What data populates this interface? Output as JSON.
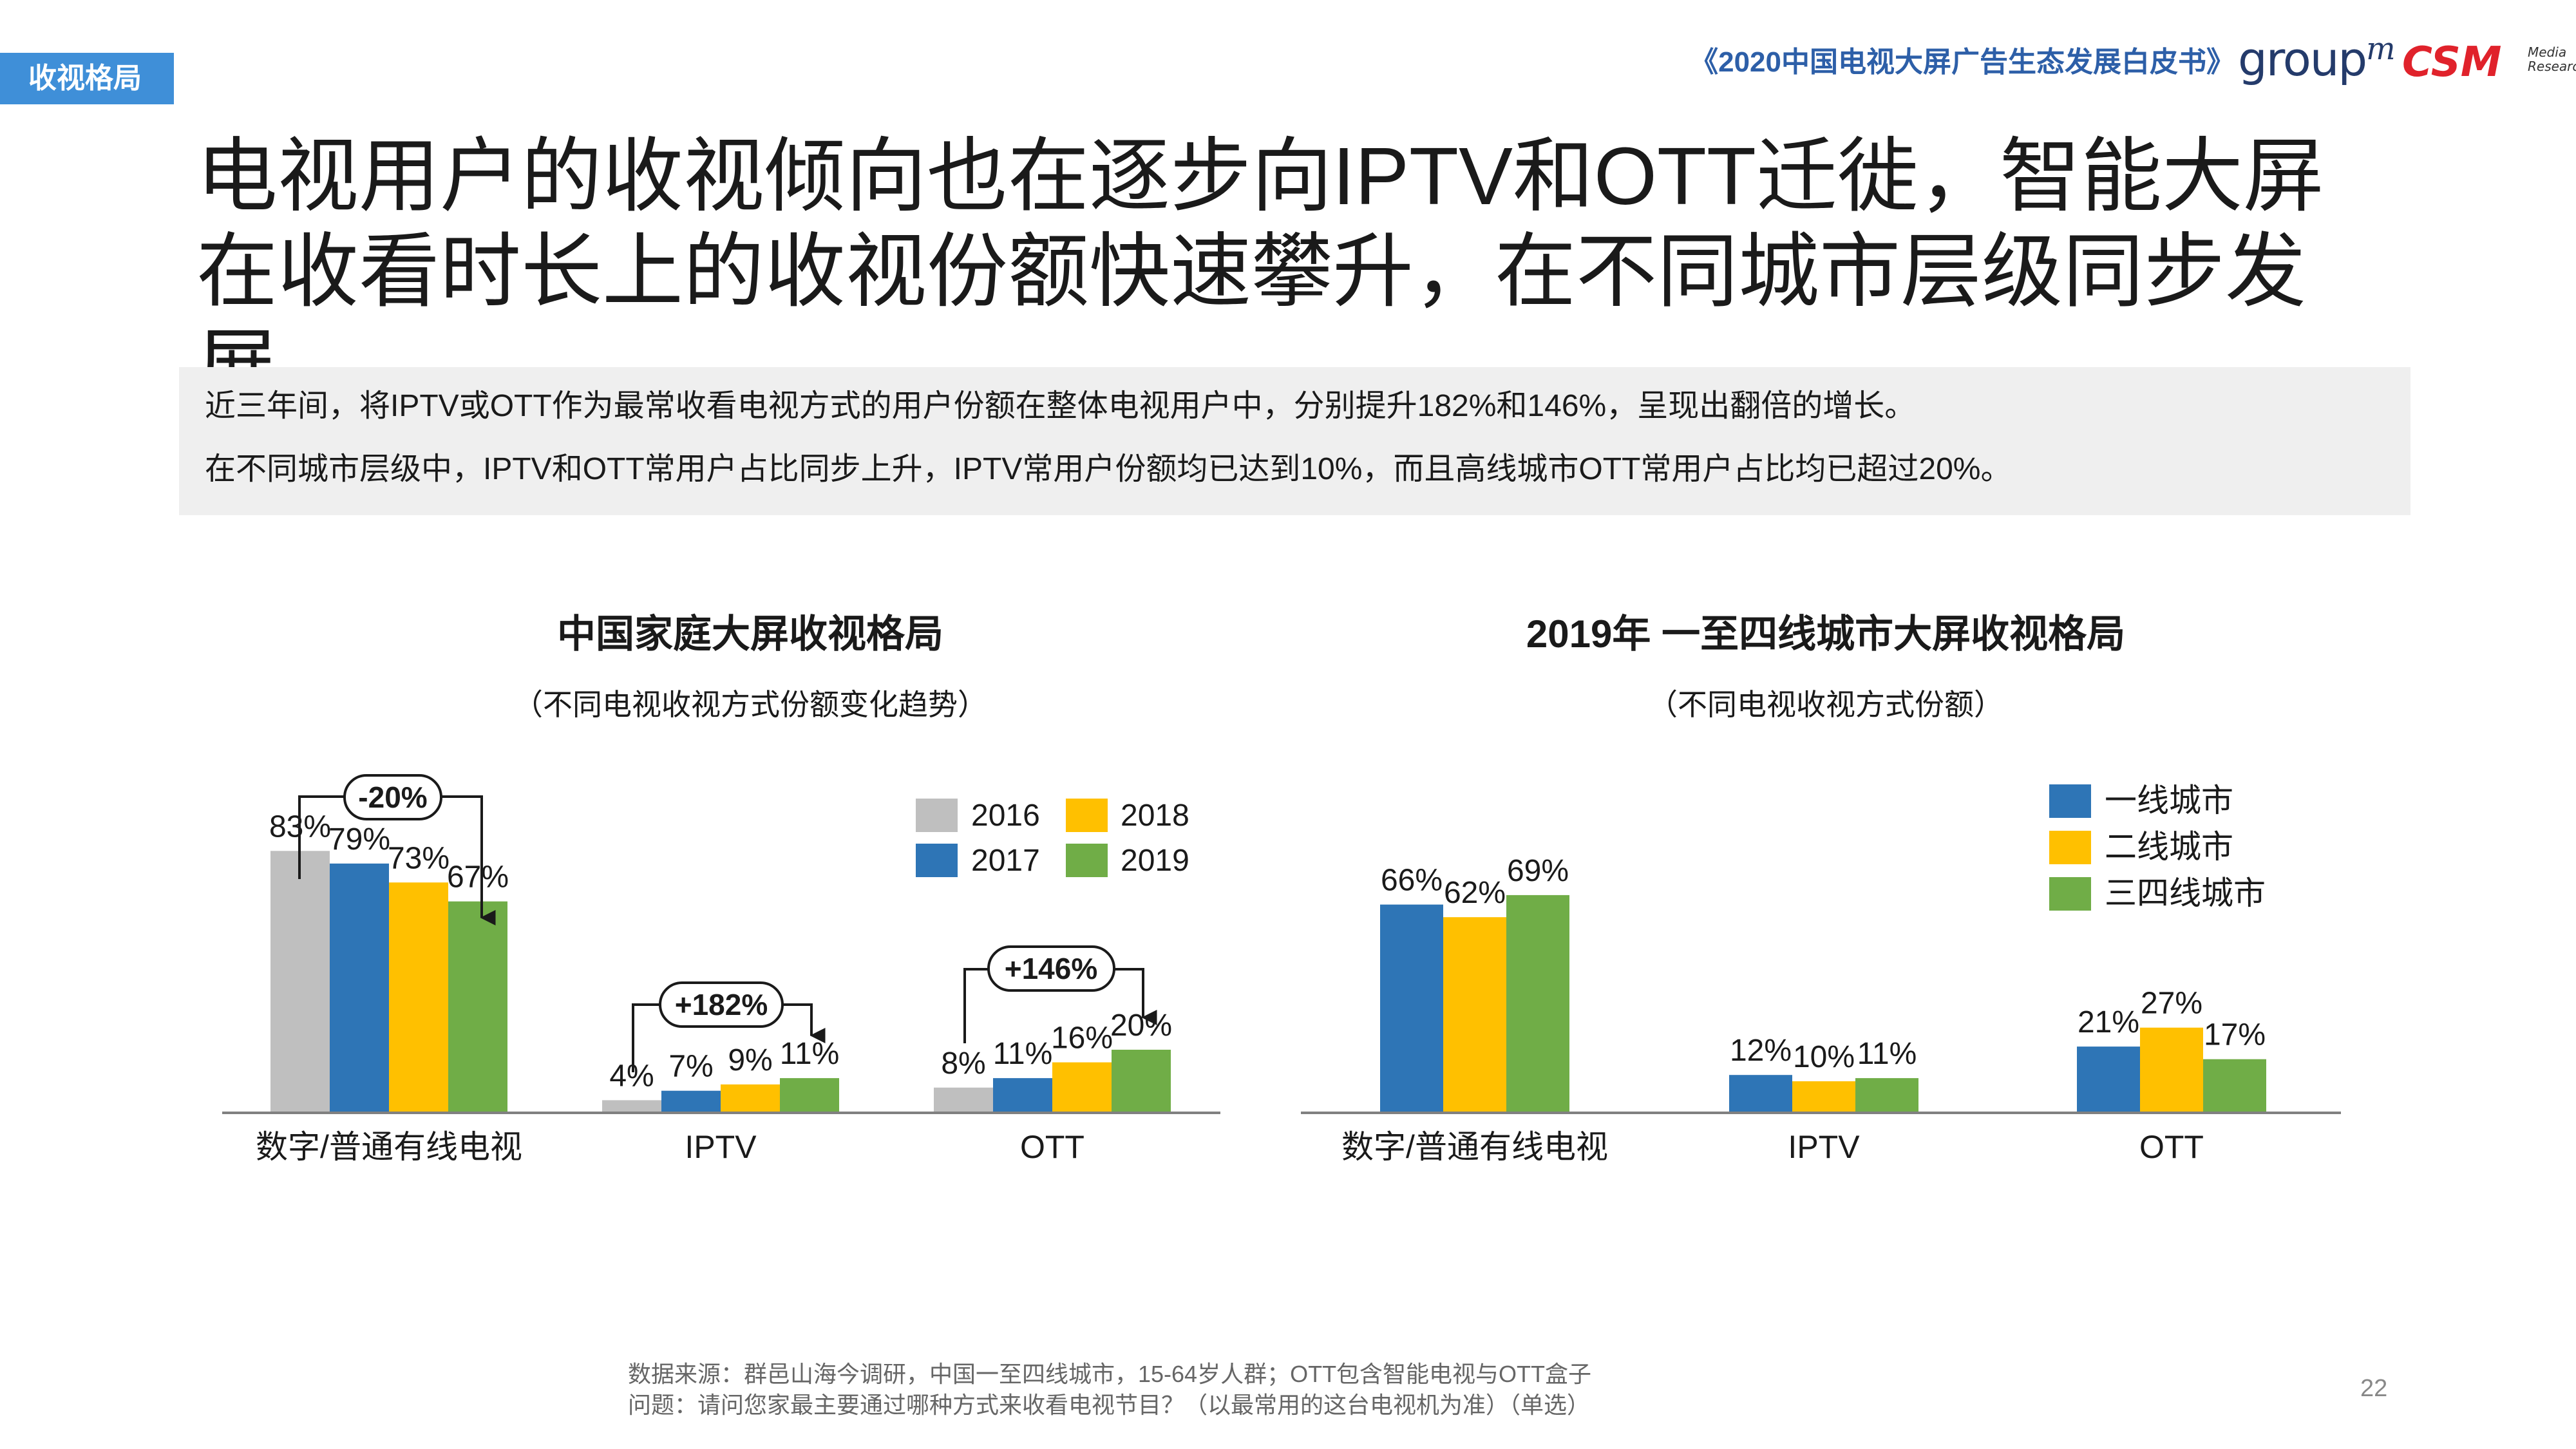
{
  "header": {
    "section_tag": "收视格局",
    "report_title": "《2020中国电视大屏广告生态发展白皮书》",
    "logo_groupm": "group",
    "logo_groupm_m": "m",
    "logo_csm": "CSM",
    "logo_csm_sub_1": "Media",
    "logo_csm_sub_2": "Research"
  },
  "headline": "电视用户的收视倾向也在逐步向IPTV和OTT迁徙，智能大屏在收看时长上的收视份额快速攀升，在不同城市层级同步发展",
  "summary": [
    "近三年间，将IPTV或OTT作为最常收看电视方式的用户份额在整体电视用户中，分别提升182%和146%，呈现出翻倍的增长。",
    "在不同城市层级中，IPTV和OTT常用户占比同步上升，IPTV常用户份额均已达到10%，而且高线城市OTT常用户占比均已超过20%。"
  ],
  "colors": {
    "grey": "#bfbfbf",
    "blue": "#2e75b6",
    "yellow": "#ffc000",
    "green": "#70ad47",
    "accent": "#3f8fd8"
  },
  "chart_data": [
    {
      "type": "bar",
      "title": "中国家庭大屏收视格局",
      "subtitle": "（不同电视收视方式份额变化趋势）",
      "categories": [
        "数字/普通有线电视",
        "IPTV",
        "OTT"
      ],
      "unit": "%",
      "ylim": [
        0,
        100
      ],
      "series": [
        {
          "name": "2016",
          "color": "#bfbfbf",
          "values": [
            83,
            4,
            8
          ]
        },
        {
          "name": "2017",
          "color": "#2e75b6",
          "values": [
            79,
            7,
            11
          ]
        },
        {
          "name": "2018",
          "color": "#ffc000",
          "values": [
            73,
            9,
            16
          ]
        },
        {
          "name": "2019",
          "color": "#70ad47",
          "values": [
            67,
            11,
            20
          ]
        }
      ],
      "annotations": [
        "-20%",
        "+182%",
        "+146%"
      ],
      "legend_position": "top-right",
      "grid": false
    },
    {
      "type": "bar",
      "title": "2019年 一至四线城市大屏收视格局",
      "subtitle": "（不同电视收视方式份额）",
      "categories": [
        "数字/普通有线电视",
        "IPTV",
        "OTT"
      ],
      "unit": "%",
      "ylim": [
        0,
        100
      ],
      "series": [
        {
          "name": "一线城市",
          "color": "#2e75b6",
          "values": [
            66,
            12,
            21
          ]
        },
        {
          "name": "二线城市",
          "color": "#ffc000",
          "values": [
            62,
            10,
            27
          ]
        },
        {
          "name": "三四线城市",
          "color": "#70ad47",
          "values": [
            69,
            11,
            17
          ]
        }
      ],
      "legend_position": "top-right",
      "grid": false
    }
  ],
  "footnote": [
    "数据来源：群邑山海今调研，中国一至四线城市，15-64岁人群；OTT包含智能电视与OTT盒子",
    "问题：请问您家最主要通过哪种方式来收看电视节目？（以最常用的这台电视机为准）（单选）"
  ],
  "page_number": "22"
}
